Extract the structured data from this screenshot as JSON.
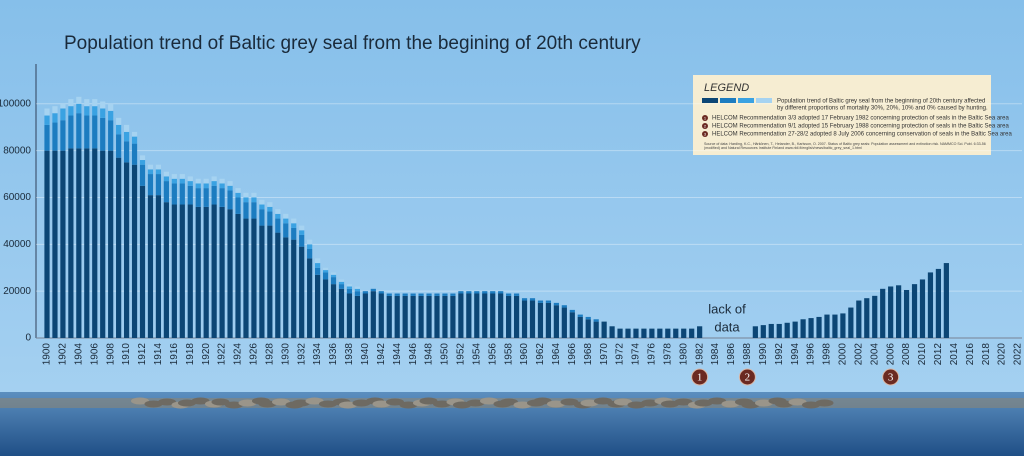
{
  "chart_data": {
    "type": "bar",
    "stacked": true,
    "title": "Population trend of Baltic grey seal from the begining of 20th century",
    "categories": [
      "1900",
      null,
      "1902",
      null,
      "1904",
      null,
      "1906",
      null,
      "1908",
      null,
      "1910",
      null,
      "1912",
      null,
      "1914",
      null,
      "1916",
      null,
      "1918",
      null,
      "1920",
      null,
      "1922",
      null,
      "1924",
      null,
      "1926",
      null,
      "1928",
      null,
      "1930",
      null,
      "1932",
      null,
      "1934",
      null,
      "1936",
      null,
      "1938",
      null,
      "1940",
      null,
      "1942",
      null,
      "1944",
      null,
      "1946",
      null,
      "1948",
      null,
      "1950",
      null,
      "1952",
      null,
      "1954",
      null,
      "1956",
      null,
      "1958",
      null,
      "1960",
      null,
      "1962",
      null,
      "1964",
      null,
      "1966",
      null,
      "1968",
      null,
      "1970",
      null,
      "1972",
      null,
      "1974",
      null,
      "1976",
      null,
      "1978",
      null,
      "1980",
      null,
      "1982",
      null,
      "1984",
      null,
      "1986",
      null,
      "1988",
      null,
      "1990",
      null,
      "1992",
      null,
      "1994",
      null,
      "1996",
      null,
      "1998",
      null,
      "2000",
      null,
      "2002",
      null,
      "2004",
      null,
      "2006",
      null,
      "2008",
      null,
      "2010",
      null,
      "2012",
      null,
      "2014",
      null,
      "2016",
      null,
      "2018",
      null,
      "2020",
      null,
      "2022"
    ],
    "series": [
      {
        "color": "#0c4675",
        "values": [
          80000,
          80000,
          80000,
          81000,
          81000,
          81000,
          81000,
          80000,
          80000,
          77000,
          75000,
          74000,
          65000,
          61000,
          61000,
          58000,
          57000,
          57000,
          57000,
          56000,
          56000,
          57000,
          56000,
          55000,
          53000,
          51000,
          51000,
          48000,
          48000,
          45000,
          43000,
          42000,
          39000,
          34000,
          27000,
          25000,
          23000,
          21000,
          19000,
          18000,
          19000,
          20000,
          19000,
          18000,
          18000,
          18000,
          18000,
          18000,
          18000,
          18000,
          18000,
          18000,
          19000,
          19000,
          19000,
          19000,
          19000,
          19000,
          18000,
          18000,
          16000,
          16000,
          15000,
          15000,
          14000,
          13000,
          11000,
          9000,
          8000,
          7000,
          7000,
          5000,
          4000,
          4000,
          4000,
          4000,
          4000,
          4000,
          4000,
          4000,
          4000,
          4000,
          5000,
          null,
          null,
          null,
          null,
          null,
          null,
          5000,
          5500,
          6000,
          6000,
          6500,
          7000,
          8000,
          8500,
          9000,
          10000,
          10000,
          10500,
          13000,
          16000,
          17000,
          18000,
          21000,
          22000,
          22500,
          20500,
          23000,
          25000,
          28000,
          29500,
          32000,
          null,
          null,
          null,
          null,
          null,
          null,
          null,
          null,
          null
        ]
      },
      {
        "color": "#1c7cc0",
        "values": [
          11000,
          12000,
          13000,
          14000,
          15000,
          14000,
          14000,
          14000,
          13000,
          10000,
          9000,
          9000,
          9000,
          9000,
          9000,
          9000,
          9000,
          9000,
          8000,
          8000,
          8000,
          8000,
          8000,
          8000,
          7000,
          7000,
          7000,
          7000,
          6000,
          6000,
          6000,
          5000,
          5000,
          4000,
          3000,
          3000,
          3000,
          2000,
          2000,
          2000,
          1000,
          1000,
          1000,
          1000,
          1000,
          1000,
          1000,
          1000,
          1000,
          1000,
          1000,
          1000,
          1000,
          1000,
          1000,
          1000,
          1000,
          1000,
          1000,
          1000,
          1000,
          1000,
          1000,
          1000,
          1000,
          1000,
          1000,
          1000,
          1000,
          1000,
          0,
          0,
          0,
          0,
          0,
          0,
          0,
          0,
          0,
          0,
          0,
          0,
          0,
          null,
          null,
          null,
          null,
          null,
          null,
          0,
          0,
          0,
          0,
          0,
          0,
          0,
          0,
          0,
          0,
          0,
          0,
          0,
          0,
          0,
          0,
          0,
          0,
          0,
          0,
          0,
          0,
          0,
          0,
          0,
          null,
          null,
          null,
          null,
          null,
          null,
          null,
          null,
          null
        ]
      },
      {
        "color": "#3aa2e2",
        "values": [
          4000,
          4000,
          5000,
          4000,
          4000,
          4000,
          4000,
          4000,
          4000,
          4000,
          4000,
          3000,
          2000,
          2000,
          2000,
          2000,
          2000,
          2000,
          2000,
          2000,
          2000,
          2000,
          2000,
          2000,
          2000,
          2000,
          2000,
          2000,
          2000,
          2000,
          2000,
          2000,
          2000,
          2000,
          2000,
          1000,
          1000,
          1000,
          1000,
          1000,
          0,
          0,
          0,
          0,
          0,
          0,
          0,
          0,
          0,
          0,
          0,
          0,
          0,
          0,
          0,
          0,
          0,
          0,
          0,
          0,
          0,
          0,
          0,
          0,
          0,
          0,
          0,
          0,
          0,
          0,
          0,
          0,
          0,
          0,
          0,
          0,
          0,
          0,
          0,
          0,
          0,
          0,
          0,
          null,
          null,
          null,
          null,
          null,
          null,
          0,
          0,
          0,
          0,
          0,
          0,
          0,
          0,
          0,
          0,
          0,
          0,
          0,
          0,
          0,
          0,
          0,
          0,
          0,
          0,
          0,
          0,
          0,
          0,
          0,
          null,
          null,
          null,
          null,
          null,
          null,
          null,
          null,
          null
        ]
      },
      {
        "color": "#a6d3f1",
        "values": [
          3000,
          3000,
          2000,
          3000,
          3000,
          3000,
          3000,
          3000,
          3000,
          3000,
          3000,
          2000,
          2000,
          2000,
          2000,
          2000,
          2000,
          2000,
          2000,
          2000,
          2000,
          2000,
          2000,
          2000,
          2000,
          2000,
          2000,
          2000,
          2000,
          2000,
          2000,
          2000,
          2000,
          2000,
          2000,
          1000,
          1000,
          1000,
          1000,
          1000,
          0,
          0,
          0,
          0,
          0,
          0,
          0,
          0,
          0,
          0,
          0,
          0,
          0,
          0,
          0,
          0,
          0,
          0,
          0,
          0,
          0,
          0,
          0,
          0,
          0,
          0,
          0,
          0,
          0,
          0,
          0,
          0,
          0,
          0,
          0,
          0,
          0,
          0,
          0,
          0,
          0,
          0,
          0,
          null,
          null,
          null,
          null,
          null,
          null,
          0,
          0,
          0,
          0,
          0,
          0,
          0,
          0,
          0,
          0,
          0,
          0,
          0,
          0,
          0,
          0,
          0,
          0,
          0,
          0,
          0,
          0,
          0,
          0,
          0,
          null,
          null,
          null,
          null,
          null,
          null,
          null,
          null,
          null
        ]
      }
    ],
    "ylim": [
      0,
      117000
    ],
    "yticks": [
      0,
      20000,
      40000,
      60000,
      80000,
      100000
    ],
    "grid": true,
    "gap_note": [
      "lack of",
      "data"
    ],
    "markers": [
      {
        "label": "1",
        "category": 82
      },
      {
        "label": "2",
        "category": 88
      },
      {
        "label": "3",
        "category": 106
      }
    ],
    "legend": {
      "title": "LEGEND",
      "text": [
        "Population trend of Baltic grey seal from the beginning of 20th century affected",
        "by different proportions of mortality 30%, 20%, 10% and 0% caused by hunting."
      ],
      "items": [
        "HELCOM Recommendation 3/3 adopted 17 February 1982 concerning protection of seals in the Baltic Sea area",
        "HELCOM Recommendation 9/1 adopted 15 February 1988 concerning protection of seals in the Baltic Sea area",
        "HELCOM Recommendation 27-28/2 adopted 8 July 2006 concerning conservation of seals in the Baltic Sea area"
      ],
      "source": [
        "Source of data: Harding, K.C., Härkönen, T., Helander, B., Karlsson, O. 2007. Status of Baltic grey seals: Population assessment and extinction risk. NAMMCO Sci. Publ. 6:33-56",
        "(modified) and Natural Resources Institute Finland www.rktl.fi/english/news/baltic_grey_seal_1.html"
      ]
    }
  }
}
